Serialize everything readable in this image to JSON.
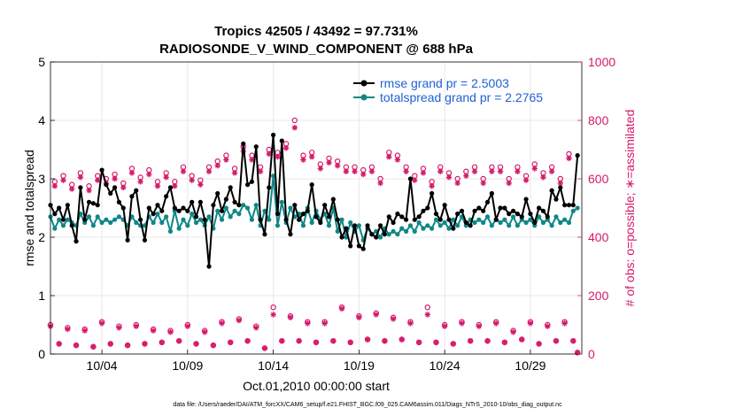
{
  "chart_data": {
    "type": "line",
    "title": "Tropics 42505 / 43492 = 97.731%",
    "subtitle": "RADIOSONDE_V_WIND_COMPONENT @ 688 hPa",
    "xlabel": "Oct.01,2010 00:00:00 start",
    "ylabel": "rmse and totalspread",
    "y2label": "# of obs: o=possible; ∗=assimilated",
    "x_ticks": [
      "10/04",
      "10/09",
      "10/14",
      "10/19",
      "10/24",
      "10/29"
    ],
    "x_tick_days": [
      4,
      9,
      14,
      19,
      24,
      29
    ],
    "xlim": [
      1,
      32
    ],
    "ylim": [
      0,
      5
    ],
    "y_ticks": [
      "0",
      "1",
      "2",
      "3",
      "4",
      "5"
    ],
    "y2lim": [
      0,
      1000
    ],
    "y2_ticks": [
      "0",
      "200",
      "400",
      "600",
      "800",
      "1000"
    ],
    "grid": true,
    "legend_position": "top-right",
    "colors": {
      "rmse": "#000000",
      "spread": "#0f8787",
      "obs": "#d6196a",
      "legend_text": "#1f5fd6"
    },
    "series": [
      {
        "name": "rmse grand pr = 2.5003",
        "x": [
          1.0,
          1.25,
          1.5,
          1.75,
          2.0,
          2.25,
          2.5,
          2.75,
          3.0,
          3.25,
          3.5,
          3.75,
          4.0,
          4.25,
          4.5,
          4.75,
          5.0,
          5.25,
          5.5,
          5.75,
          6.0,
          6.25,
          6.5,
          6.75,
          7.0,
          7.25,
          7.5,
          7.75,
          8.0,
          8.25,
          8.5,
          8.75,
          9.0,
          9.25,
          9.5,
          9.75,
          10.0,
          10.25,
          10.5,
          10.75,
          11.0,
          11.25,
          11.5,
          11.75,
          12.0,
          12.25,
          12.5,
          12.75,
          13.0,
          13.25,
          13.5,
          13.75,
          14.0,
          14.25,
          14.5,
          14.75,
          15.0,
          15.25,
          15.5,
          15.75,
          16.0,
          16.25,
          16.5,
          16.75,
          17.0,
          17.25,
          17.5,
          17.75,
          18.0,
          18.25,
          18.5,
          18.75,
          19.0,
          19.25,
          19.5,
          19.75,
          20.0,
          20.25,
          20.5,
          20.75,
          21.0,
          21.25,
          21.5,
          21.75,
          22.0,
          22.25,
          22.5,
          22.75,
          23.0,
          23.25,
          23.5,
          23.75,
          24.0,
          24.25,
          24.5,
          24.75,
          25.0,
          25.25,
          25.5,
          25.75,
          26.0,
          26.25,
          26.5,
          26.75,
          27.0,
          27.25,
          27.5,
          27.75,
          28.0,
          28.25,
          28.5,
          28.75,
          29.0,
          29.25,
          29.5,
          29.75,
          30.0,
          30.25,
          30.5,
          30.75,
          31.0,
          31.25,
          31.5,
          31.75
        ],
        "values": [
          2.55,
          2.4,
          2.5,
          2.3,
          2.55,
          2.2,
          1.93,
          2.85,
          2.3,
          2.6,
          2.58,
          2.55,
          3.15,
          2.9,
          2.75,
          2.85,
          2.6,
          2.5,
          1.95,
          2.7,
          2.8,
          2.3,
          1.95,
          2.5,
          2.4,
          2.55,
          2.45,
          2.7,
          2.85,
          2.5,
          2.45,
          2.5,
          2.45,
          2.6,
          2.35,
          2.6,
          2.3,
          1.5,
          2.55,
          2.75,
          2.45,
          2.65,
          2.85,
          2.6,
          2.55,
          3.6,
          2.9,
          2.95,
          3.55,
          2.3,
          2.05,
          2.85,
          3.75,
          2.4,
          3.65,
          2.3,
          2.05,
          2.55,
          2.3,
          2.4,
          2.45,
          2.9,
          2.35,
          2.25,
          2.55,
          2.35,
          2.65,
          2.3,
          2.0,
          2.15,
          1.85,
          2.2,
          1.85,
          1.8,
          2.2,
          2.05,
          2.0,
          2.2,
          2.05,
          2.35,
          2.25,
          2.4,
          2.35,
          2.3,
          3.0,
          2.3,
          2.35,
          2.45,
          2.5,
          2.75,
          2.4,
          2.3,
          2.55,
          2.3,
          2.15,
          2.4,
          2.45,
          2.25,
          2.2,
          2.45,
          2.5,
          2.45,
          2.6,
          2.75,
          2.3,
          2.5,
          2.5,
          2.4,
          2.45,
          2.4,
          2.35,
          2.65,
          2.4,
          2.25,
          2.5,
          2.45,
          2.35,
          2.8,
          2.65,
          2.85,
          2.55,
          2.55,
          2.55,
          3.4
        ]
      },
      {
        "name": "totalspread grand pr = 2.2765",
        "x": [
          1.0,
          1.25,
          1.5,
          1.75,
          2.0,
          2.25,
          2.5,
          2.75,
          3.0,
          3.25,
          3.5,
          3.75,
          4.0,
          4.25,
          4.5,
          4.75,
          5.0,
          5.25,
          5.5,
          5.75,
          6.0,
          6.25,
          6.5,
          6.75,
          7.0,
          7.25,
          7.5,
          7.75,
          8.0,
          8.25,
          8.5,
          8.75,
          9.0,
          9.25,
          9.5,
          9.75,
          10.0,
          10.25,
          10.5,
          10.75,
          11.0,
          11.25,
          11.5,
          11.75,
          12.0,
          12.25,
          12.5,
          12.75,
          13.0,
          13.25,
          13.5,
          13.75,
          14.0,
          14.25,
          14.5,
          14.75,
          15.0,
          15.25,
          15.5,
          15.75,
          16.0,
          16.25,
          16.5,
          16.75,
          17.0,
          17.25,
          17.5,
          17.75,
          18.0,
          18.25,
          18.5,
          18.75,
          19.0,
          19.25,
          19.5,
          19.75,
          20.0,
          20.25,
          20.5,
          20.75,
          21.0,
          21.25,
          21.5,
          21.75,
          22.0,
          22.25,
          22.5,
          22.75,
          23.0,
          23.25,
          23.5,
          23.75,
          24.0,
          24.25,
          24.5,
          24.75,
          25.0,
          25.25,
          25.5,
          25.75,
          26.0,
          26.25,
          26.5,
          26.75,
          27.0,
          27.25,
          27.5,
          27.75,
          28.0,
          28.25,
          28.5,
          28.75,
          29.0,
          29.25,
          29.5,
          29.75,
          30.0,
          30.25,
          30.5,
          30.75,
          31.0,
          31.25,
          31.5,
          31.75
        ],
        "values": [
          2.35,
          2.15,
          2.3,
          2.2,
          2.3,
          2.25,
          2.2,
          2.4,
          2.25,
          2.35,
          2.2,
          2.35,
          2.25,
          2.3,
          2.25,
          2.3,
          2.35,
          2.3,
          2.2,
          2.35,
          2.25,
          2.2,
          2.2,
          2.35,
          2.25,
          2.4,
          2.25,
          2.35,
          2.1,
          2.45,
          2.15,
          2.3,
          2.2,
          2.4,
          2.25,
          2.3,
          2.2,
          2.35,
          2.15,
          2.45,
          2.3,
          2.5,
          2.35,
          2.45,
          2.4,
          2.55,
          2.5,
          2.3,
          2.55,
          2.2,
          2.45,
          2.3,
          3.05,
          2.2,
          2.6,
          2.25,
          2.5,
          2.35,
          2.4,
          2.2,
          2.5,
          2.25,
          2.45,
          2.3,
          2.4,
          2.2,
          2.5,
          2.1,
          2.3,
          2.0,
          2.25,
          2.1,
          2.2,
          1.95,
          2.15,
          2.05,
          2.1,
          2.0,
          2.15,
          2.05,
          2.1,
          2.05,
          2.15,
          2.1,
          2.2,
          2.1,
          2.25,
          2.15,
          2.2,
          2.15,
          2.3,
          2.2,
          2.25,
          2.15,
          2.3,
          2.2,
          2.35,
          2.2,
          2.3,
          2.25,
          2.3,
          2.25,
          2.35,
          2.2,
          2.3,
          2.25,
          2.3,
          2.2,
          2.35,
          2.2,
          2.3,
          2.25,
          2.3,
          2.2,
          2.35,
          2.25,
          2.3,
          2.2,
          2.35,
          2.25,
          2.3,
          2.25,
          2.45,
          2.5
        ]
      },
      {
        "name": "obs possible (o)",
        "axis": "right",
        "x": [
          1.0,
          1.25,
          1.5,
          1.75,
          2.0,
          2.25,
          2.5,
          2.75,
          3.0,
          3.25,
          3.5,
          3.75,
          4.0,
          4.25,
          4.5,
          4.75,
          5.0,
          5.25,
          5.5,
          5.75,
          6.0,
          6.25,
          6.5,
          6.75,
          7.0,
          7.25,
          7.5,
          7.75,
          8.0,
          8.25,
          8.5,
          8.75,
          9.0,
          9.25,
          9.5,
          9.75,
          10.0,
          10.25,
          10.5,
          10.75,
          11.0,
          11.25,
          11.5,
          11.75,
          12.0,
          12.25,
          12.5,
          12.75,
          13.0,
          13.25,
          13.5,
          13.75,
          14.0,
          14.25,
          14.5,
          14.75,
          15.0,
          15.25,
          15.5,
          15.75,
          16.0,
          16.25,
          16.5,
          16.75,
          17.0,
          17.25,
          17.5,
          17.75,
          18.0,
          18.25,
          18.5,
          18.75,
          19.0,
          19.25,
          19.5,
          19.75,
          20.0,
          20.25,
          20.5,
          20.75,
          21.0,
          21.25,
          21.5,
          21.75,
          22.0,
          22.25,
          22.5,
          22.75,
          23.0,
          23.25,
          23.5,
          23.75,
          24.0,
          24.25,
          24.5,
          24.75,
          25.0,
          25.25,
          25.5,
          25.75,
          26.0,
          26.25,
          26.5,
          26.75,
          27.0,
          27.25,
          27.5,
          27.75,
          28.0,
          28.25,
          28.5,
          28.75,
          29.0,
          29.25,
          29.5,
          29.75,
          30.0,
          30.25,
          30.5,
          30.75,
          31.0,
          31.25,
          31.5,
          31.75
        ],
        "values": [
          100,
          590,
          35,
          610,
          90,
          580,
          30,
          620,
          85,
          575,
          25,
          610,
          110,
          600,
          35,
          615,
          95,
          585,
          30,
          635,
          100,
          605,
          35,
          630,
          85,
          590,
          40,
          620,
          80,
          590,
          45,
          640,
          100,
          610,
          35,
          595,
          80,
          640,
          30,
          660,
          110,
          680,
          40,
          635,
          120,
          710,
          45,
          680,
          95,
          640,
          20,
          700,
          160,
          690,
          45,
          720,
          130,
          800,
          45,
          680,
          110,
          690,
          40,
          650,
          110,
          670,
          45,
          660,
          160,
          640,
          40,
          640,
          130,
          630,
          50,
          640,
          140,
          600,
          45,
          690,
          125,
          680,
          50,
          640,
          110,
          610,
          40,
          635,
          160,
          590,
          40,
          640,
          100,
          620,
          35,
          600,
          110,
          625,
          45,
          640,
          100,
          600,
          45,
          640,
          110,
          640,
          40,
          600,
          80,
          640,
          50,
          610,
          110,
          650,
          35,
          620,
          100,
          640,
          45,
          600,
          110,
          685,
          45,
          5
        ]
      },
      {
        "name": "obs assimilated (∗)",
        "axis": "right",
        "x": [
          1.0,
          1.25,
          1.5,
          1.75,
          2.0,
          2.25,
          2.5,
          2.75,
          3.0,
          3.25,
          3.5,
          3.75,
          4.0,
          4.25,
          4.5,
          4.75,
          5.0,
          5.25,
          5.5,
          5.75,
          6.0,
          6.25,
          6.5,
          6.75,
          7.0,
          7.25,
          7.5,
          7.75,
          8.0,
          8.25,
          8.5,
          8.75,
          9.0,
          9.25,
          9.5,
          9.75,
          10.0,
          10.25,
          10.5,
          10.75,
          11.0,
          11.25,
          11.5,
          11.75,
          12.0,
          12.25,
          12.5,
          12.75,
          13.0,
          13.25,
          13.5,
          13.75,
          14.0,
          14.25,
          14.5,
          14.75,
          15.0,
          15.25,
          15.5,
          15.75,
          16.0,
          16.25,
          16.5,
          16.75,
          17.0,
          17.25,
          17.5,
          17.75,
          18.0,
          18.25,
          18.5,
          18.75,
          19.0,
          19.25,
          19.5,
          19.75,
          20.0,
          20.25,
          20.5,
          20.75,
          21.0,
          21.25,
          21.5,
          21.75,
          22.0,
          22.25,
          22.5,
          22.75,
          23.0,
          23.25,
          23.5,
          23.75,
          24.0,
          24.25,
          24.5,
          24.75,
          25.0,
          25.25,
          25.5,
          25.75,
          26.0,
          26.25,
          26.5,
          26.75,
          27.0,
          27.25,
          27.5,
          27.75,
          28.0,
          28.25,
          28.5,
          28.75,
          29.0,
          29.25,
          29.5,
          29.75,
          30.0,
          30.25,
          30.5,
          30.75,
          31.0,
          31.25,
          31.5,
          31.75
        ],
        "values": [
          95,
          575,
          35,
          595,
          85,
          565,
          30,
          605,
          80,
          560,
          25,
          595,
          105,
          585,
          35,
          600,
          90,
          570,
          30,
          620,
          95,
          590,
          35,
          615,
          80,
          575,
          40,
          605,
          75,
          575,
          45,
          625,
          95,
          595,
          35,
          580,
          75,
          625,
          30,
          645,
          105,
          665,
          40,
          620,
          115,
          695,
          45,
          665,
          90,
          625,
          20,
          685,
          135,
          675,
          45,
          705,
          125,
          775,
          45,
          665,
          105,
          675,
          40,
          635,
          105,
          655,
          45,
          645,
          155,
          625,
          40,
          625,
          125,
          615,
          50,
          625,
          135,
          585,
          45,
          675,
          120,
          665,
          50,
          625,
          105,
          595,
          40,
          620,
          135,
          575,
          40,
          625,
          95,
          605,
          35,
          585,
          105,
          610,
          45,
          625,
          95,
          585,
          45,
          625,
          105,
          625,
          40,
          585,
          75,
          625,
          50,
          595,
          105,
          635,
          35,
          605,
          95,
          625,
          45,
          585,
          105,
          670,
          45,
          5
        ]
      }
    ]
  },
  "footer": {
    "data_file": "data file: /Users/raeder/DAI/ATM_forcXX/CAM6_setup/f.e21.FHIST_BGC.f09_025.CAM6assim.011/Diags_NTrS_2010-10/obs_diag_output.nc"
  }
}
